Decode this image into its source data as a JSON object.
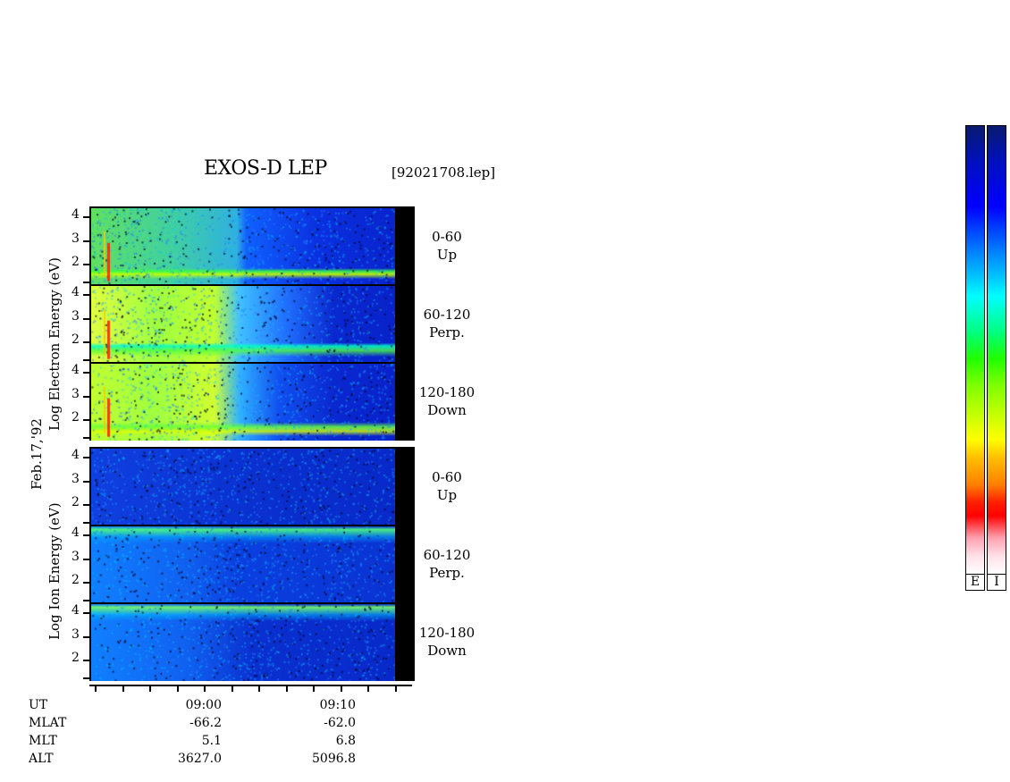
{
  "title": "EXOS-D LEP",
  "file_label": "[92021708.lep]",
  "date_label": "Feb.17,'92",
  "electron_axis_label": "Log Electron Energy (eV)",
  "ion_axis_label": "Log Ion Energy (eV)",
  "info_labels": [
    "UT",
    "MLAT",
    "MLT",
    "ALT"
  ],
  "info_columns": [
    {
      "values": [
        "09:00",
        "-66.2",
        "5.1",
        "3627.0"
      ]
    },
    {
      "values": [
        "09:10",
        "-62.0",
        "6.8",
        "5096.8"
      ]
    }
  ],
  "colorbar_labels": [
    "E",
    "I"
  ],
  "chart_data": {
    "type": "heatmap",
    "title": "EXOS-D LEP",
    "xlabel": "UT",
    "x_tick_labels": [
      "09:00",
      "09:10"
    ],
    "ylabel_electron": "Log Electron Energy (eV)",
    "ylabel_ion": "Log Ion Energy (eV)",
    "y_tick_labels": [
      "1",
      "2",
      "3",
      "4"
    ],
    "ylim": [
      1,
      4
    ],
    "panels": [
      {
        "species": "Electron",
        "pitch_angle": "0-60",
        "direction": "Up"
      },
      {
        "species": "Electron",
        "pitch_angle": "60-120",
        "direction": "Perp."
      },
      {
        "species": "Electron",
        "pitch_angle": "120-180",
        "direction": "Down"
      },
      {
        "species": "Ion",
        "pitch_angle": "0-60",
        "direction": "Up"
      },
      {
        "species": "Ion",
        "pitch_angle": "60-120",
        "direction": "Perp."
      },
      {
        "species": "Ion",
        "pitch_angle": "120-180",
        "direction": "Down"
      }
    ],
    "colorscale": [
      "#0a1a6e",
      "#0000ff",
      "#00a0ff",
      "#00ffff",
      "#00ff40",
      "#40ff00",
      "#ffff00",
      "#ff8000",
      "#ff0000",
      "#ffc0c0",
      "#ffffff"
    ]
  }
}
